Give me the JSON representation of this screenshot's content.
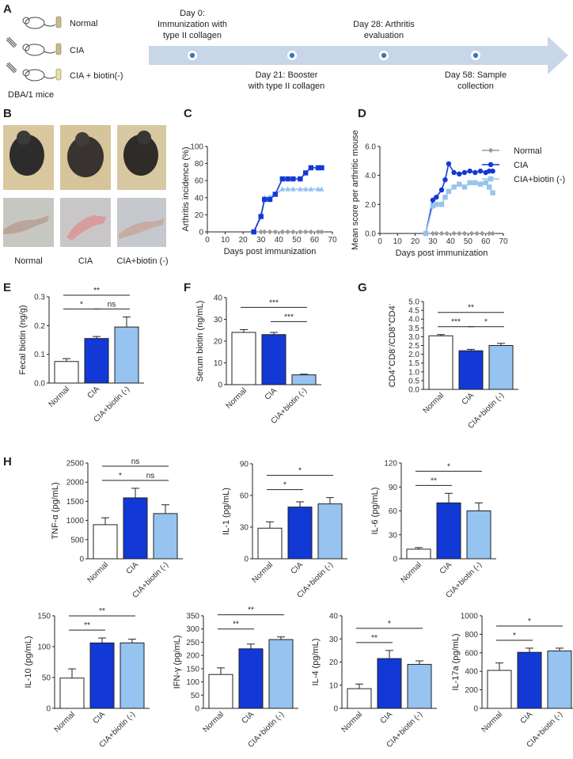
{
  "colors": {
    "normal": "#9a9a9a",
    "cia": "#1238d6",
    "biotin": "#96c3ef",
    "timeline": "#c9d6e8",
    "text": "#222222"
  },
  "panel_a": {
    "label": "A",
    "groups": [
      {
        "name": "Normal",
        "food_color": "#c9b98b"
      },
      {
        "name": "CIA",
        "food_color": "#c9b98b"
      },
      {
        "name": "CIA + biotin(-)",
        "food_color": "#e8e0a8"
      }
    ],
    "mice_label": "DBA/1 mice",
    "timeline_events": [
      {
        "line1": "Day 0:",
        "line2": "Immunization with",
        "line3": "type II collagen",
        "position": "top"
      },
      {
        "line1": "Day 21: Booster",
        "line2": "with type II collagen",
        "line3": "",
        "position": "bottom"
      },
      {
        "line1": "Day 28: Arthritis",
        "line2": "evaluation",
        "line3": "",
        "position": "top"
      },
      {
        "line1": "Day 58: Sample",
        "line2": "collection",
        "line3": "",
        "position": "bottom"
      }
    ]
  },
  "panel_b": {
    "label": "B",
    "captions": [
      "Normal",
      "CIA",
      "CIA+biotin (-)"
    ]
  },
  "chart_data": [
    {
      "panel": "C",
      "type": "line",
      "ylabel": "Arthritis incidence (%)",
      "xlabel": "Days post immunization",
      "xlim": [
        0,
        70
      ],
      "ylim": [
        0,
        100
      ],
      "xticks": [
        0,
        10,
        20,
        30,
        40,
        50,
        60,
        70
      ],
      "yticks": [
        0,
        20,
        40,
        60,
        80,
        100
      ],
      "series": [
        {
          "name": "Normal",
          "color_key": "normal",
          "marker": "diamond",
          "points": [
            [
              26,
              0
            ],
            [
              30,
              0
            ],
            [
              32,
              0
            ],
            [
              35,
              0
            ],
            [
              38,
              0
            ],
            [
              42,
              0
            ],
            [
              45,
              0
            ],
            [
              48,
              0
            ],
            [
              52,
              0
            ],
            [
              55,
              0
            ],
            [
              58,
              0
            ],
            [
              62,
              0
            ],
            [
              64,
              0
            ]
          ]
        },
        {
          "name": "CIA+biotin (-)",
          "color_key": "biotin",
          "marker": "triangle",
          "points": [
            [
              26,
              0
            ],
            [
              30,
              20
            ],
            [
              32,
              40
            ],
            [
              35,
              41
            ],
            [
              38,
              44
            ],
            [
              42,
              50
            ],
            [
              45,
              50
            ],
            [
              48,
              50
            ],
            [
              52,
              50
            ],
            [
              55,
              50
            ],
            [
              58,
              50
            ],
            [
              62,
              50
            ],
            [
              64,
              50
            ]
          ]
        },
        {
          "name": "CIA",
          "color_key": "cia",
          "marker": "square",
          "points": [
            [
              26,
              0
            ],
            [
              30,
              18
            ],
            [
              32,
              38
            ],
            [
              35,
              38
            ],
            [
              38,
              44
            ],
            [
              42,
              62
            ],
            [
              45,
              62
            ],
            [
              48,
              62
            ],
            [
              52,
              62
            ],
            [
              55,
              69
            ],
            [
              58,
              75
            ],
            [
              62,
              75
            ],
            [
              64,
              75
            ]
          ]
        }
      ]
    },
    {
      "panel": "D",
      "type": "line",
      "ylabel": "Mean score per arthritic mouse",
      "xlabel": "Days post immunization",
      "xlim": [
        0,
        70
      ],
      "ylim": [
        0,
        6
      ],
      "xticks": [
        0,
        10,
        20,
        30,
        40,
        50,
        60,
        70
      ],
      "yticks": [
        0,
        2,
        4,
        6
      ],
      "legend": [
        "Normal",
        "CIA",
        "CIA+biotin (-)"
      ],
      "series": [
        {
          "name": "Normal",
          "color_key": "normal",
          "marker": "diamond",
          "points": [
            [
              26,
              0
            ],
            [
              30,
              0
            ],
            [
              32,
              0
            ],
            [
              35,
              0
            ],
            [
              38,
              0
            ],
            [
              42,
              0
            ],
            [
              45,
              0
            ],
            [
              48,
              0
            ],
            [
              52,
              0
            ],
            [
              55,
              0
            ],
            [
              58,
              0
            ],
            [
              62,
              0
            ],
            [
              64,
              0
            ]
          ]
        },
        {
          "name": "CIA",
          "color_key": "cia",
          "marker": "circle",
          "points": [
            [
              26,
              0
            ],
            [
              30,
              2.3
            ],
            [
              32,
              2.5
            ],
            [
              35,
              3.0
            ],
            [
              37,
              3.7
            ],
            [
              39,
              4.8
            ],
            [
              42,
              4.2
            ],
            [
              45,
              4.1
            ],
            [
              48,
              4.2
            ],
            [
              51,
              4.3
            ],
            [
              54,
              4.2
            ],
            [
              57,
              4.3
            ],
            [
              60,
              4.2
            ],
            [
              62,
              4.3
            ],
            [
              64,
              4.3
            ]
          ]
        },
        {
          "name": "CIA+biotin (-)",
          "color_key": "biotin",
          "marker": "square",
          "points": [
            [
              26,
              0
            ],
            [
              30,
              1.9
            ],
            [
              32,
              2.0
            ],
            [
              35,
              2.0
            ],
            [
              37,
              2.5
            ],
            [
              39,
              2.9
            ],
            [
              42,
              3.2
            ],
            [
              45,
              3.4
            ],
            [
              48,
              3.2
            ],
            [
              51,
              3.5
            ],
            [
              54,
              3.5
            ],
            [
              57,
              3.4
            ],
            [
              60,
              3.5
            ],
            [
              62,
              3.2
            ],
            [
              64,
              2.8
            ]
          ]
        }
      ]
    },
    {
      "panel": "E",
      "type": "bar",
      "ylabel": "Fecal biotin (ng/g)",
      "ylim": [
        0,
        0.3
      ],
      "yticks": [
        "0.0",
        "0.1",
        "0.2",
        "0.3"
      ],
      "categories": [
        "Normal",
        "CIA",
        "CIA+biotin (-)"
      ],
      "values": [
        0.075,
        0.155,
        0.195
      ],
      "errors": [
        0.01,
        0.007,
        0.035
      ],
      "sig": [
        {
          "from": 0,
          "to": 2,
          "text": "**"
        },
        {
          "from": 0,
          "to": 1,
          "text": "*"
        },
        {
          "from": 1,
          "to": 2,
          "text": "ns"
        }
      ]
    },
    {
      "panel": "F",
      "type": "bar",
      "ylabel": "Serum biotin (ng/mL)",
      "ylim": [
        0,
        40
      ],
      "yticks": [
        "0",
        "10",
        "20",
        "30",
        "40"
      ],
      "categories": [
        "Normal",
        "CIA",
        "CIA+biotin (-)"
      ],
      "values": [
        24,
        23,
        4.5
      ],
      "errors": [
        1.3,
        1.0,
        0.3
      ],
      "sig": [
        {
          "from": 0,
          "to": 2,
          "text": "***"
        },
        {
          "from": 1,
          "to": 2,
          "text": "***"
        }
      ]
    },
    {
      "panel": "G",
      "type": "bar",
      "ylabel_parts": [
        "CD4",
        "+",
        "CD8",
        "-",
        "/CD8",
        "+",
        "CD4",
        "-"
      ],
      "ylim": [
        0,
        5
      ],
      "yticks": [
        "0.0",
        "0.5",
        "1.0",
        "1.5",
        "2.0",
        "2.5",
        "3.0",
        "3.5",
        "4.0",
        "4.5",
        "5.0"
      ],
      "categories": [
        "Normal",
        "CIA",
        "CIA+biotin (-)"
      ],
      "values": [
        3.05,
        2.2,
        2.5
      ],
      "errors": [
        0.07,
        0.08,
        0.12
      ],
      "sig": [
        {
          "from": 0,
          "to": 2,
          "text": "**"
        },
        {
          "from": 0,
          "to": 1,
          "text": "***"
        },
        {
          "from": 1,
          "to": 2,
          "text": "*"
        }
      ]
    },
    {
      "panel": "H",
      "type": "bar",
      "ylabel": "TNF-α (pg/mL)",
      "ylim": [
        0,
        2500
      ],
      "yticks": [
        "0",
        "500",
        "1000",
        "1500",
        "2000",
        "2500"
      ],
      "categories": [
        "Normal",
        "CIA",
        "CIA+biotin (-)"
      ],
      "values": [
        890,
        1590,
        1180
      ],
      "errors": [
        180,
        250,
        230
      ],
      "sig": [
        {
          "from": 0,
          "to": 2,
          "text": "ns"
        },
        {
          "from": 0,
          "to": 1,
          "text": "*"
        },
        {
          "from": 1,
          "to": 2,
          "text": "ns"
        }
      ]
    },
    {
      "panel": "H",
      "type": "bar",
      "ylabel": "IL-1 (pg/mL)",
      "ylim": [
        0,
        90
      ],
      "yticks": [
        "0",
        "30",
        "60",
        "90"
      ],
      "categories": [
        "Normal",
        "CIA",
        "CIA+biotin (-)"
      ],
      "values": [
        29,
        49,
        52
      ],
      "errors": [
        6,
        5,
        6
      ],
      "sig": [
        {
          "from": 0,
          "to": 2,
          "text": "*"
        },
        {
          "from": 0,
          "to": 1,
          "text": "*"
        }
      ]
    },
    {
      "panel": "H",
      "type": "bar",
      "ylabel": "IL-6 (pg/mL)",
      "ylim": [
        0,
        120
      ],
      "yticks": [
        "0",
        "30",
        "60",
        "90",
        "120"
      ],
      "categories": [
        "Normal",
        "CIA",
        "CIA+biotin (-)"
      ],
      "values": [
        12,
        70,
        60
      ],
      "errors": [
        2,
        12,
        10
      ],
      "sig": [
        {
          "from": 0,
          "to": 2,
          "text": "*"
        },
        {
          "from": 0,
          "to": 1,
          "text": "**"
        }
      ]
    },
    {
      "panel": "H",
      "type": "bar",
      "ylabel": "IL-10 (pg/mL)",
      "ylim": [
        0,
        150
      ],
      "yticks": [
        "0",
        "50",
        "100",
        "150"
      ],
      "categories": [
        "Normal",
        "CIA",
        "CIA+biotin (-)"
      ],
      "values": [
        49,
        106,
        106
      ],
      "errors": [
        15,
        8,
        6
      ],
      "sig": [
        {
          "from": 0,
          "to": 2,
          "text": "**"
        },
        {
          "from": 0,
          "to": 1,
          "text": "**"
        }
      ]
    },
    {
      "panel": "H",
      "type": "bar",
      "ylabel": "IFN-γ (pg/mL)",
      "ylim": [
        0,
        350
      ],
      "yticks": [
        "0",
        "50",
        "100",
        "150",
        "200",
        "250",
        "300",
        "350"
      ],
      "categories": [
        "Normal",
        "CIA",
        "CIA+biotin (-)"
      ],
      "values": [
        128,
        225,
        260
      ],
      "errors": [
        25,
        18,
        10
      ],
      "sig": [
        {
          "from": 0,
          "to": 2,
          "text": "**"
        },
        {
          "from": 0,
          "to": 1,
          "text": "**"
        }
      ]
    },
    {
      "panel": "H",
      "type": "bar",
      "ylabel": "IL-4 (pg/mL)",
      "ylim": [
        0,
        40
      ],
      "yticks": [
        "0",
        "10",
        "20",
        "30",
        "40"
      ],
      "categories": [
        "Normal",
        "CIA",
        "CIA+biotin (-)"
      ],
      "values": [
        8.5,
        21.5,
        19
      ],
      "errors": [
        2,
        3.5,
        1.5
      ],
      "sig": [
        {
          "from": 0,
          "to": 2,
          "text": "*"
        },
        {
          "from": 0,
          "to": 1,
          "text": "**"
        }
      ]
    },
    {
      "panel": "H",
      "type": "bar",
      "ylabel": "IL-17a (pg/mL)",
      "ylim": [
        0,
        1000
      ],
      "yticks": [
        "0",
        "200",
        "400",
        "600",
        "800",
        "1000"
      ],
      "categories": [
        "Normal",
        "CIA",
        "CIA+biotin (-)"
      ],
      "values": [
        410,
        605,
        620
      ],
      "errors": [
        80,
        45,
        30
      ],
      "sig": [
        {
          "from": 0,
          "to": 2,
          "text": "*"
        },
        {
          "from": 0,
          "to": 1,
          "text": "*"
        }
      ]
    }
  ]
}
